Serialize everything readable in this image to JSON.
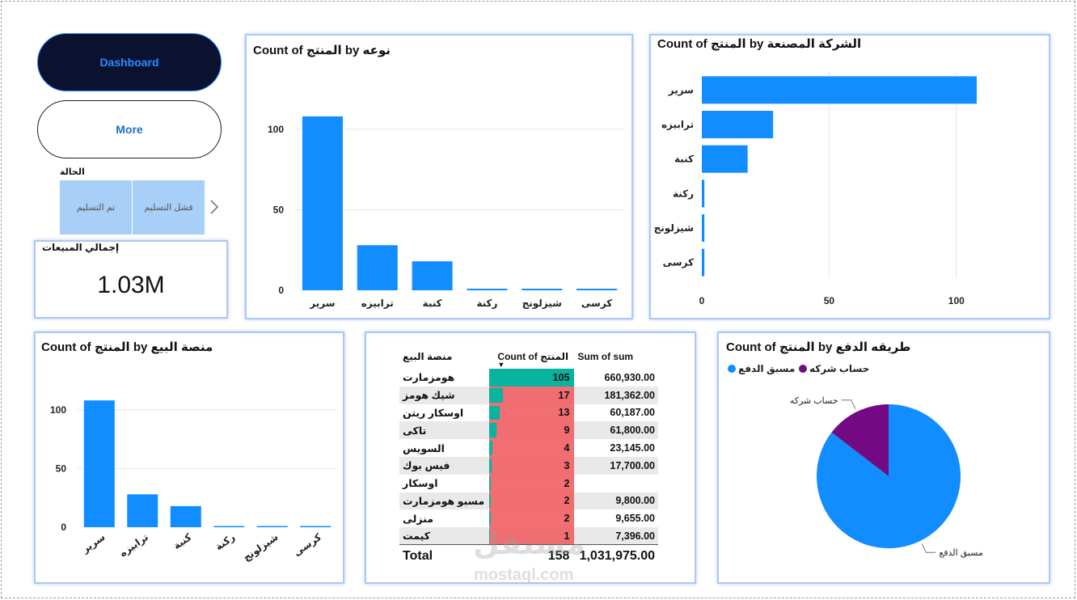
{
  "nav": {
    "dashboard_label": "Dashboard",
    "more_label": "More"
  },
  "slicer": {
    "title": "الحالة",
    "items": [
      "تم التسليم",
      "فشل التسليم"
    ]
  },
  "kpi": {
    "label": "إجمالي المبيعات",
    "value": "1.03M"
  },
  "colors": {
    "bar": "#118dff",
    "teal": "#08b3a0",
    "salmon": "#f0666a",
    "purple": "#730a83",
    "blue": "#118dff"
  },
  "chart_data": [
    {
      "id": "by-type",
      "type": "bar",
      "title": "Count of المنتج by نوعه",
      "categories": [
        "سرير",
        "ترابيزه",
        "كنبة",
        "ركنة",
        "شيزلونج",
        "كرسى"
      ],
      "values": [
        108,
        28,
        18,
        1,
        1,
        1
      ],
      "yticks": [
        0,
        50,
        100
      ],
      "ylim": [
        0,
        115
      ],
      "grid": true
    },
    {
      "id": "by-manufacturer",
      "type": "bar",
      "orientation": "horizontal",
      "title": "Count of المنتج by الشركة المصنعة",
      "categories": [
        "سرير",
        "ترابيزه",
        "كنبة",
        "ركنة",
        "شيزلونج",
        "كرسى"
      ],
      "values": [
        108,
        28,
        18,
        1,
        1,
        1
      ],
      "xticks": [
        0,
        50,
        100
      ],
      "xlim": [
        0,
        115
      ],
      "grid": true
    },
    {
      "id": "by-platform",
      "type": "bar",
      "title": "Count of المنتج by  منصة البيع",
      "categories": [
        "سرير",
        "ترابيزه",
        "كنبة",
        "ركنة",
        "شيزلونج",
        "كرسى"
      ],
      "values": [
        108,
        28,
        18,
        1,
        1,
        1
      ],
      "yticks": [
        0,
        50,
        100
      ],
      "ylim": [
        0,
        115
      ],
      "grid": true
    },
    {
      "id": "by-payment",
      "type": "pie",
      "title": "Count of المنتج by طريقه الدفع",
      "legend": [
        "مسبق الدفع",
        "حساب شركه"
      ],
      "legend_position": "top-left",
      "slices": [
        {
          "label": "مسبق الدفع",
          "value": 135,
          "color": "#118dff"
        },
        {
          "label": "حساب شركه",
          "value": 23,
          "color": "#730a83"
        }
      ]
    },
    {
      "id": "platform-table",
      "type": "table",
      "columns": [
        "منصة البيع",
        "Count of المنتج",
        "Sum of sum"
      ],
      "rows": [
        {
          "platform": "هومزمارت",
          "count": 105,
          "sum": "660,930.00"
        },
        {
          "platform": "شيك هومز",
          "count": 17,
          "sum": "181,362.00"
        },
        {
          "platform": "اوسكار ريتن",
          "count": 13,
          "sum": "60,187.00"
        },
        {
          "platform": "تاكى",
          "count": 9,
          "sum": "61,800.00"
        },
        {
          "platform": "السويس",
          "count": 4,
          "sum": "23,145.00"
        },
        {
          "platform": "فيس بوك",
          "count": 3,
          "sum": "17,700.00"
        },
        {
          "platform": "اوسكار",
          "count": 2,
          "sum": ""
        },
        {
          "platform": "مسبو هومزمارت",
          "count": 2,
          "sum": "9,800.00"
        },
        {
          "platform": "منزلى",
          "count": 2,
          "sum": "9,655.00"
        },
        {
          "platform": "كيمت",
          "count": 1,
          "sum": "7,396.00"
        }
      ],
      "total": {
        "label": "Total",
        "count": "158",
        "sum": "1,031,975.00"
      }
    }
  ],
  "watermark": {
    "logo": "مستقل",
    "site": "mostaql.com"
  }
}
